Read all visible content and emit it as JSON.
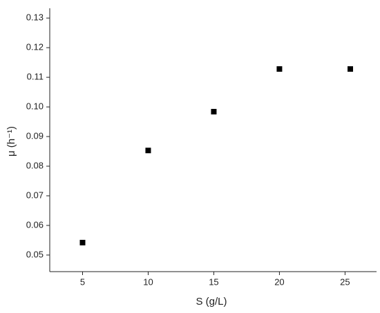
{
  "chart_data": {
    "type": "scatter",
    "x_label": "S (g/L)",
    "y_label": "μ (h⁻¹)",
    "x": [
      5,
      10,
      15,
      20,
      25.4
    ],
    "values": [
      0.0542,
      0.0853,
      0.0984,
      0.1128,
      0.1128
    ],
    "color": "#000000",
    "xlim": [
      2.5,
      27.4
    ],
    "xticks": [
      5,
      10,
      15,
      20,
      25
    ],
    "ylim": [
      0.0444,
      0.1333
    ],
    "yticks": [
      {
        "value": 0.05,
        "label": "0.05"
      },
      {
        "value": 0.06,
        "label": "0.06"
      },
      {
        "value": 0.07,
        "label": "0.07"
      },
      {
        "value": 0.08,
        "label": "0.08"
      },
      {
        "value": 0.09,
        "label": "0.09"
      },
      {
        "value": 0.1,
        "label": "0.10"
      },
      {
        "value": 0.11,
        "label": "0.11"
      },
      {
        "value": 0.12,
        "label": "0.12"
      },
      {
        "value": 0.13,
        "label": "0.13"
      }
    ],
    "grid": false
  }
}
